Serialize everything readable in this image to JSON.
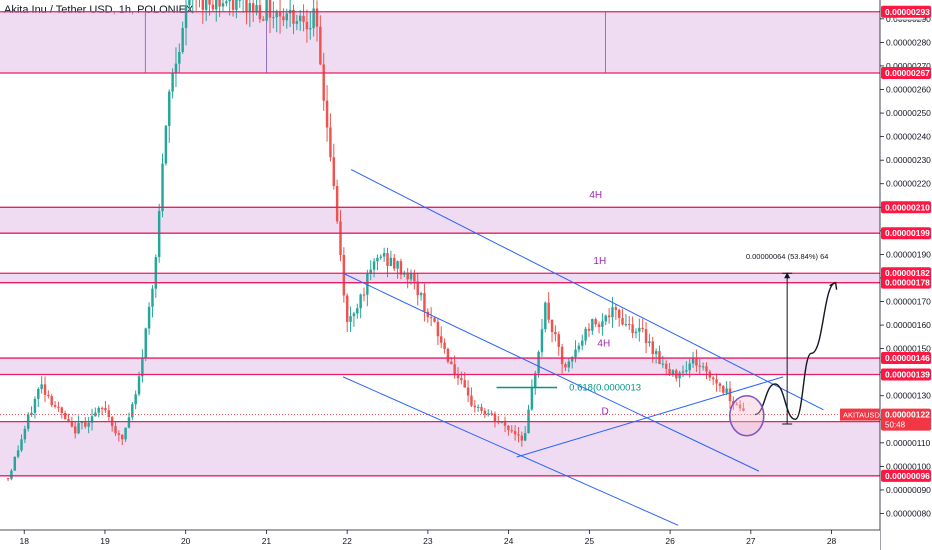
{
  "header": {
    "title": "Akita Inu / Tether USD, 1h, POLONIEX"
  },
  "colors": {
    "up": "#26a69a",
    "down": "#ef5350",
    "zone_fill": "#e1bee7",
    "zone_line": "#e91e63",
    "channel": "#2962ff",
    "fib": "#009688",
    "label_purple": "#9c27b0",
    "price_tag": "#ff1744",
    "current_tag": "#f23645"
  },
  "chart_data": {
    "type": "candlestick",
    "title": "Akita Inu / Tether USD, 1h, POLONIEX",
    "currency": "USDT",
    "ylim": [
      7.3e-07,
      2.98e-06
    ],
    "xlim": [
      17.7,
      28.6
    ],
    "y_ticks": [
      "0.00000080",
      "0.00000090",
      "0.00000100",
      "0.00000110",
      "0.00000120",
      "0.00000130",
      "0.00000140",
      "0.00000150",
      "0.00000160",
      "0.00000170",
      "0.00000180",
      "0.00000190",
      "0.00000200",
      "0.00000210",
      "0.00000220",
      "0.00000230",
      "0.00000240",
      "0.00000250",
      "0.00000260",
      "0.00000270",
      "0.00000280",
      "0.00000290"
    ],
    "x_ticks": [
      {
        "value": 18,
        "label": "18"
      },
      {
        "value": 19,
        "label": "19"
      },
      {
        "value": 20,
        "label": "20"
      },
      {
        "value": 21,
        "label": "21"
      },
      {
        "value": 22,
        "label": "22"
      },
      {
        "value": 23,
        "label": "23"
      },
      {
        "value": 24,
        "label": "24"
      },
      {
        "value": 25,
        "label": "25"
      },
      {
        "value": 26,
        "label": "26"
      },
      {
        "value": 27,
        "label": "27"
      },
      {
        "value": 28,
        "label": "28"
      }
    ],
    "price_levels": [
      {
        "value": 2.93e-06,
        "label": "0.00000293"
      },
      {
        "value": 2.67e-06,
        "label": "0.00000267"
      },
      {
        "value": 2.1e-06,
        "label": "0.00000210"
      },
      {
        "value": 1.99e-06,
        "label": "0.00000199"
      },
      {
        "value": 1.82e-06,
        "label": "0.00000182"
      },
      {
        "value": 1.78e-06,
        "label": "0.00000178"
      },
      {
        "value": 1.46e-06,
        "label": "0.00000146"
      },
      {
        "value": 1.39e-06,
        "label": "0.00000139"
      },
      {
        "value": 1.19e-06,
        "label": "0.00000119"
      },
      {
        "value": 9.6e-07,
        "label": "0.00000096"
      }
    ],
    "zones": [
      {
        "top": 2.93e-06,
        "bottom": 2.67e-06
      },
      {
        "top": 2.1e-06,
        "bottom": 1.99e-06
      },
      {
        "top": 1.82e-06,
        "bottom": 1.78e-06
      },
      {
        "top": 1.46e-06,
        "bottom": 1.39e-06
      },
      {
        "top": 1.19e-06,
        "bottom": 9.6e-07
      }
    ],
    "current_price": {
      "symbol": "AKITAUSDT",
      "value": 1.22e-06,
      "label": "0.00000122",
      "countdown": "50:48"
    },
    "channel_lines": [
      {
        "x1": 22.05,
        "y1": 2.26e-06,
        "x2": 27.9,
        "y2": 1.24e-06
      },
      {
        "x1": 21.95,
        "y1": 1.82e-06,
        "x2": 27.1,
        "y2": 9.8e-07
      },
      {
        "x1": 21.95,
        "y1": 1.38e-06,
        "x2": 26.1,
        "y2": 7.5e-07
      },
      {
        "x1": 24.1,
        "y1": 1.04e-06,
        "x2": 27.4,
        "y2": 1.38e-06
      }
    ],
    "fib_label": "0.618(0.0000013",
    "measure": {
      "x": 27.45,
      "top": 1.82e-06,
      "bottom": 1.18e-06,
      "label": "0.00000064 (53.84%) 64"
    },
    "annotations": [
      {
        "text": "4H",
        "x": 25.0,
        "y": 2.14e-06
      },
      {
        "text": "1H",
        "x": 25.05,
        "y": 1.86e-06
      },
      {
        "text": "4H",
        "x": 25.1,
        "y": 1.51e-06
      },
      {
        "text": "D",
        "x": 25.15,
        "y": 1.22e-06
      }
    ],
    "projection": [
      {
        "x": 27.05,
        "y": 1.22e-06
      },
      {
        "x": 27.3,
        "y": 1.35e-06
      },
      {
        "x": 27.55,
        "y": 1.2e-06
      },
      {
        "x": 27.75,
        "y": 1.48e-06
      },
      {
        "x": 28.05,
        "y": 1.78e-06
      }
    ]
  }
}
